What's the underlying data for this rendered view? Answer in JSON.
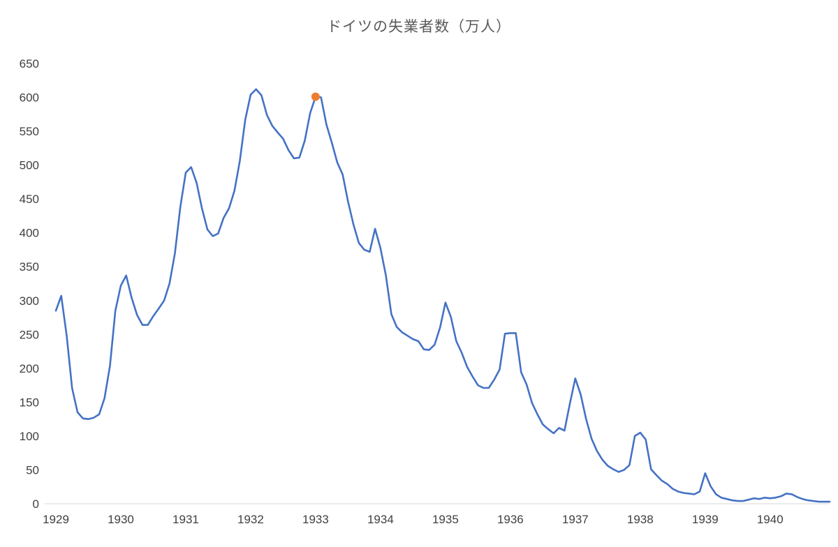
{
  "chart_data": {
    "type": "line",
    "title": "ドイツの失業者数（万人）",
    "xlabel": "",
    "ylabel": "",
    "x_unit": "monthly points from January 1929 to December 1940",
    "x_tick_labels": [
      "1929",
      "1930",
      "1931",
      "1932",
      "1933",
      "1934",
      "1935",
      "1936",
      "1937",
      "1938",
      "1939",
      "1940"
    ],
    "y_ticks": [
      0,
      50,
      100,
      150,
      200,
      250,
      300,
      350,
      400,
      450,
      500,
      550,
      600,
      650
    ],
    "ylim": [
      0,
      650
    ],
    "grid": false,
    "legend": "none",
    "values": [
      285,
      307,
      248,
      171,
      135,
      126,
      125,
      127,
      132,
      156,
      204,
      285,
      322,
      337,
      304,
      279,
      264,
      264,
      277,
      288,
      300,
      325,
      370,
      438,
      489,
      497,
      474,
      436,
      405,
      395,
      399,
      422,
      436,
      462,
      506,
      567,
      604,
      612,
      603,
      574,
      558,
      548,
      539,
      522,
      510,
      511,
      536,
      577,
      601,
      600,
      560,
      533,
      504,
      486,
      446,
      412,
      385,
      375,
      372,
      406,
      377,
      337,
      280,
      261,
      253,
      248,
      243,
      240,
      228,
      227,
      235,
      260,
      297,
      276,
      240,
      223,
      202,
      188,
      175,
      171,
      171,
      183,
      198,
      251,
      252,
      252,
      194,
      176,
      149,
      132,
      117,
      110,
      104,
      112,
      108,
      148,
      185,
      161,
      125,
      96,
      78,
      65,
      56,
      51,
      47,
      50,
      57,
      100,
      105,
      95,
      51,
      42,
      34,
      29,
      22,
      18,
      16,
      15,
      14,
      18,
      45,
      26,
      14,
      9,
      7,
      5,
      4,
      4,
      6,
      8,
      7,
      9,
      8,
      9,
      11,
      15,
      14,
      10,
      7,
      5,
      4,
      3,
      3,
      3
    ],
    "highlight_marker": {
      "index": 48,
      "value": 601,
      "shape": "circle"
    },
    "colors": {
      "line": "#4472C4",
      "marker": "#ED7D31",
      "axis_line": "#D9D9D9",
      "tick_label": "#404040",
      "title": "#595959"
    }
  }
}
